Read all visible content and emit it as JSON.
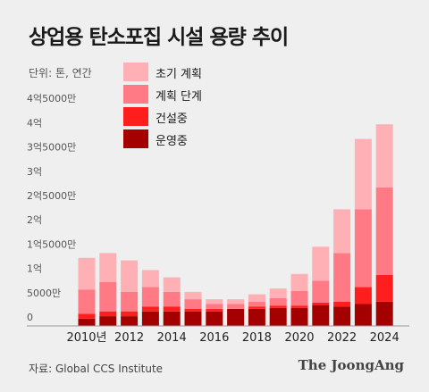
{
  "title": "상업용 탄소포집 시설 용량 추이",
  "unit_label": "단위: 톤, 연간",
  "source": "자료: Global CCS Institute",
  "brand": "The JoongAng",
  "chart_data": {
    "type": "bar",
    "stacked": true,
    "categories": [
      "2010",
      "2011",
      "2012",
      "2013",
      "2014",
      "2015",
      "2016",
      "2017",
      "2018",
      "2019",
      "2020",
      "2021",
      "2022",
      "2023",
      "2024"
    ],
    "x_tick_labels": [
      "2010년",
      "",
      "2012",
      "",
      "2014",
      "",
      "2016",
      "",
      "2018",
      "",
      "2020",
      "",
      "2022",
      "",
      "2024"
    ],
    "y_tick_labels": [
      "0",
      "5000만",
      "1억",
      "1억5000만",
      "2억",
      "2억5000만",
      "3억",
      "3억5000만",
      "4억",
      "4억5000만"
    ],
    "ylim": [
      0,
      450000000
    ],
    "grid": false,
    "legend_position": "top-left",
    "series": [
      {
        "name": "운영중",
        "color": "#a50000",
        "values": [
          15000000,
          20000000,
          20000000,
          30000000,
          30000000,
          30000000,
          30000000,
          35000000,
          35000000,
          37000000,
          37000000,
          43000000,
          40000000,
          45000000,
          50000000
        ]
      },
      {
        "name": "건설중",
        "color": "#ff1e1e",
        "values": [
          10000000,
          10000000,
          10000000,
          10000000,
          10000000,
          5000000,
          5000000,
          0,
          5000000,
          5000000,
          5000000,
          5000000,
          10000000,
          35000000,
          55000000
        ]
      },
      {
        "name": "계획 단계",
        "color": "#ff7a85",
        "values": [
          50000000,
          60000000,
          40000000,
          40000000,
          30000000,
          20000000,
          10000000,
          10000000,
          10000000,
          15000000,
          30000000,
          45000000,
          100000000,
          160000000,
          180000000
        ]
      },
      {
        "name": "초기 계획",
        "color": "#ffb0b5",
        "values": [
          65000000,
          60000000,
          65000000,
          35000000,
          30000000,
          15000000,
          10000000,
          10000000,
          15000000,
          20000000,
          35000000,
          70000000,
          90000000,
          145000000,
          130000000
        ]
      }
    ]
  }
}
